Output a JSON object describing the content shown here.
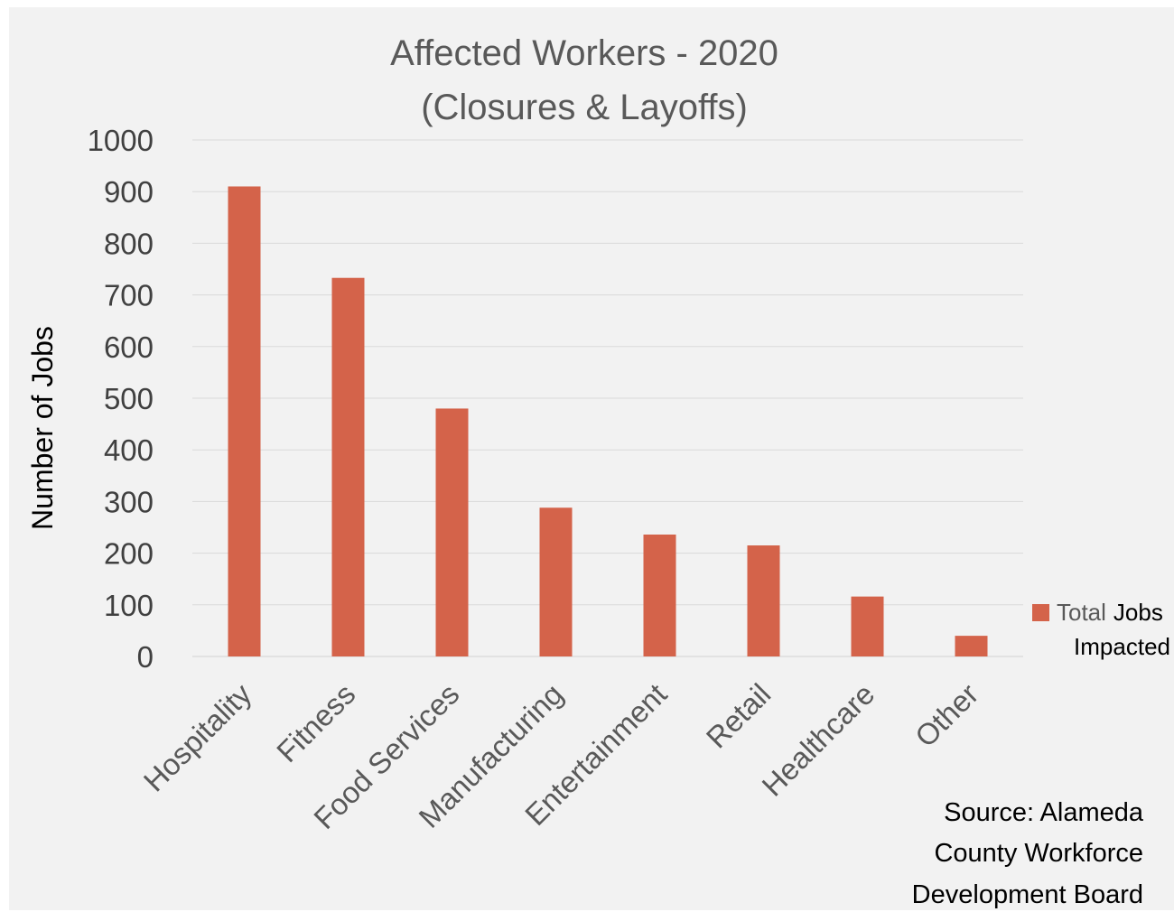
{
  "chart_data": {
    "type": "bar",
    "title_lines": [
      "Affected  Workers - 2020",
      "(Closures & Layoffs)"
    ],
    "ylabel": "Number of Jobs",
    "xlabel": "",
    "ylim": [
      0,
      1000
    ],
    "yticks": [
      0,
      100,
      200,
      300,
      400,
      500,
      600,
      700,
      800,
      900,
      1000
    ],
    "grid": true,
    "categories": [
      "Hospitality",
      "Fitness",
      "Food Services",
      "Manufacturing",
      "Entertainment",
      "Retail",
      "Healthcare",
      "Other"
    ],
    "series": [
      {
        "legend_parts": [
          "Total",
          "Jobs"
        ],
        "legend_line2": "Impacted",
        "color": "#d4634a",
        "values": [
          910,
          733,
          480,
          288,
          236,
          215,
          116,
          40
        ]
      }
    ],
    "legend_position": "right",
    "source_lines": [
      "Source: Alameda",
      "County Workforce",
      "Development Board"
    ]
  }
}
